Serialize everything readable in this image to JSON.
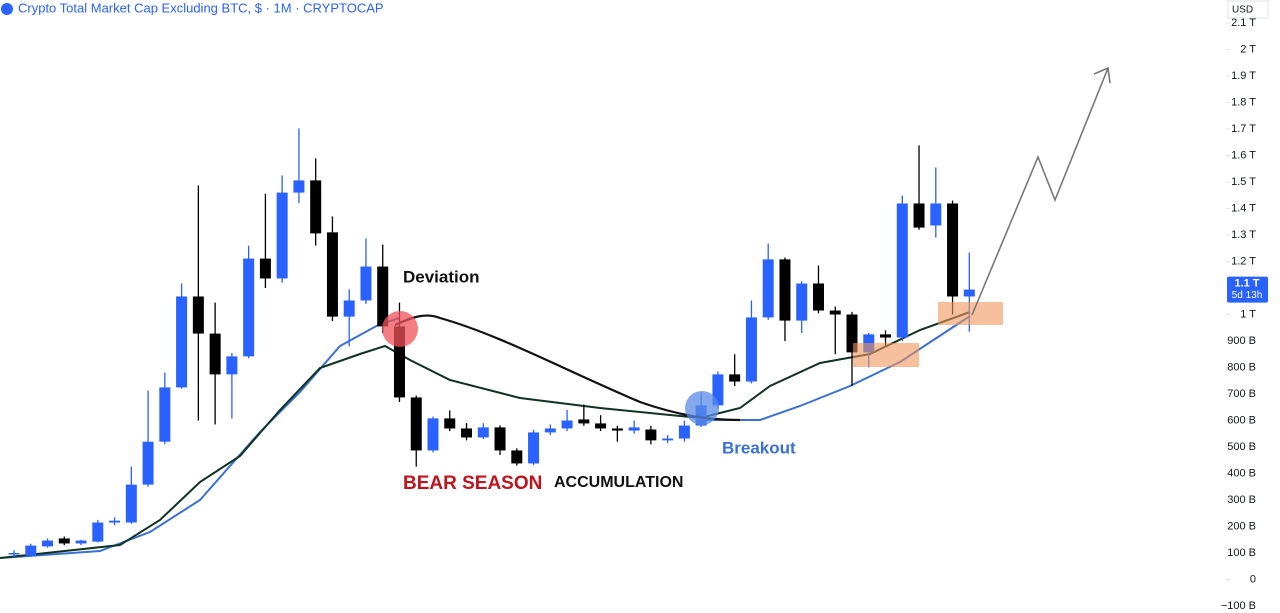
{
  "chart_data": {
    "type": "candlestick",
    "title": "Crypto Total Market Cap Excluding BTC, $ · 1M · CRYPTOCAP",
    "currency": "USD",
    "up_color": "#2962ff",
    "down_color": "#000000",
    "annotations": [
      "Deviation",
      "BEAR SEASON",
      "ACCUMULATION",
      "Breakout"
    ],
    "last_price_label": "1.1 T",
    "countdown": "5d 13h",
    "ylim": [
      -100,
      2100
    ],
    "yticks": [
      {
        "value": -100,
        "label": "−100 B"
      },
      0,
      {
        "value": 100,
        "label": "100 B"
      },
      {
        "value": 200,
        "label": "200 B"
      },
      {
        "value": 300,
        "label": "300 B"
      },
      {
        "value": 400,
        "label": "400 B"
      },
      {
        "value": 500,
        "label": "500 B"
      },
      {
        "value": 600,
        "label": "600 B"
      },
      {
        "value": 700,
        "label": "700 B"
      },
      {
        "value": 800,
        "label": "800 B"
      },
      {
        "value": 900,
        "label": "900 B"
      },
      {
        "value": 1000,
        "label": "1 T"
      },
      {
        "value": 1100,
        "label": "1.1 T"
      },
      {
        "value": 1200,
        "label": "1.2 T"
      },
      {
        "value": 1300,
        "label": "1.3 T"
      },
      {
        "value": 1400,
        "label": "1.4 T"
      },
      {
        "value": 1500,
        "label": "1.5 T"
      },
      {
        "value": 1600,
        "label": "1.6 T"
      },
      {
        "value": 1700,
        "label": "1.7 T"
      },
      {
        "value": 1800,
        "label": "1.8 T"
      },
      {
        "value": 1900,
        "label": "1.9 T"
      },
      {
        "value": 2000,
        "label": "2 T"
      },
      {
        "value": 2100,
        "label": "2.1 T"
      }
    ],
    "open": [
      95,
      90,
      125,
      155,
      136,
      143,
      215,
      215,
      358,
      520,
      725,
      1068,
      928,
      774,
      842,
      1211,
      1136,
      1460,
      1506,
      1310,
      992,
      1053,
      1181,
      955,
      687,
      487,
      608,
      570,
      536,
      574,
      487,
      438,
      555,
      570,
      604,
      589,
      570,
      562,
      566,
      525,
      532,
      581,
      657,
      774,
      747,
      989,
      1208,
      977,
      1117,
      1015,
      1000,
      857,
      925,
      913,
      1419,
      1336,
      1419,
      1068
    ],
    "high": [
      110,
      135,
      155,
      162,
      150,
      225,
      235,
      426,
      713,
      781,
      1117,
      1487,
      1045,
      855,
      1260,
      1456,
      1525,
      1702,
      1589,
      1370,
      1095,
      1287,
      1264,
      1045,
      694,
      615,
      638,
      590,
      590,
      582,
      495,
      565,
      585,
      640,
      660,
      620,
      580,
      600,
      580,
      545,
      600,
      706,
      785,
      850,
      1053,
      1268,
      1215,
      1125,
      1185,
      1030,
      1010,
      930,
      940,
      1449,
      1638,
      1555,
      1430,
      1234
    ],
    "low": [
      85,
      85,
      120,
      130,
      130,
      140,
      205,
      210,
      350,
      510,
      720,
      600,
      585,
      607,
      835,
      1100,
      1120,
      1420,
      1260,
      975,
      880,
      1040,
      930,
      670,
      426,
      480,
      560,
      525,
      530,
      470,
      430,
      432,
      545,
      560,
      580,
      560,
      520,
      550,
      510,
      515,
      520,
      575,
      645,
      730,
      740,
      980,
      900,
      930,
      1005,
      850,
      730,
      800,
      880,
      900,
      1320,
      1290,
      1000,
      935
    ],
    "close": [
      100,
      128,
      147,
      136,
      147,
      215,
      222,
      358,
      520,
      725,
      1068,
      928,
      774,
      842,
      1211,
      1136,
      1460,
      1506,
      1306,
      992,
      1053,
      1181,
      955,
      687,
      487,
      608,
      570,
      536,
      574,
      487,
      438,
      555,
      570,
      600,
      589,
      570,
      562,
      574,
      525,
      532,
      581,
      657,
      774,
      747,
      989,
      1208,
      977,
      1117,
      1015,
      1000,
      857,
      925,
      913,
      1419,
      1328,
      1419,
      1068,
      1094
    ]
  }
}
